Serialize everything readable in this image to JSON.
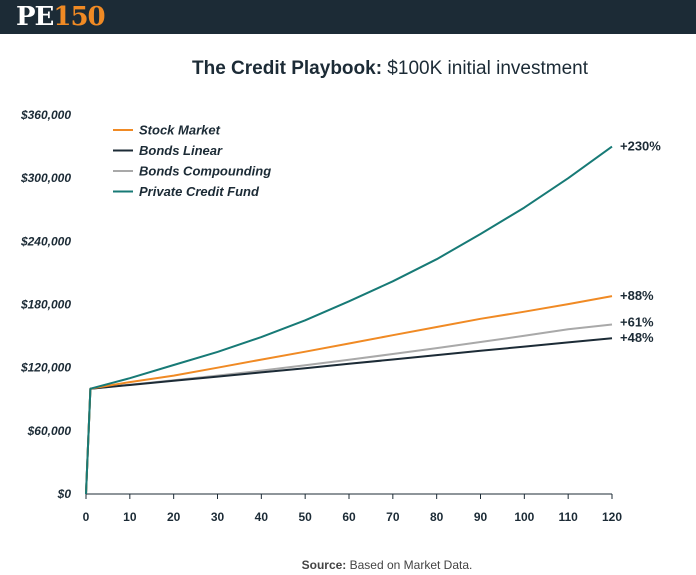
{
  "header": {
    "logo_letters": "PE",
    "logo_number": "150"
  },
  "title": {
    "bold": "The Credit Playbook:",
    "rest": " $100K initial investment"
  },
  "source": {
    "bold": "Source:",
    "rest": " Based on Market Data."
  },
  "chart_data": {
    "type": "line",
    "title": "The Credit Playbook: $100K initial investment",
    "xlabel": "",
    "ylabel": "",
    "xlim": [
      0,
      120
    ],
    "ylim": [
      0,
      360000
    ],
    "x_ticks": [
      0,
      10,
      20,
      30,
      40,
      50,
      60,
      70,
      80,
      90,
      100,
      110,
      120
    ],
    "y_ticks": [
      0,
      60000,
      120000,
      180000,
      240000,
      300000,
      360000
    ],
    "y_tick_labels": [
      "$0",
      "$60,000",
      "$120,000",
      "$180,000",
      "$240,000",
      "$300,000",
      "$360,000"
    ],
    "legend_position": "top-left",
    "grid": false,
    "series": [
      {
        "name": "Stock Market",
        "color": "#f08a24",
        "end_label": "+88%",
        "x": [
          0,
          1,
          10,
          20,
          30,
          40,
          50,
          60,
          70,
          80,
          90,
          100,
          110,
          120
        ],
        "y": [
          0,
          100000,
          106300,
          112500,
          120000,
          127700,
          135200,
          143000,
          150800,
          158600,
          166400,
          173200,
          180400,
          188000
        ]
      },
      {
        "name": "Bonds Linear",
        "color": "#1c2b36",
        "end_label": "+48%",
        "x": [
          0,
          1,
          10,
          20,
          30,
          40,
          50,
          60,
          70,
          80,
          90,
          100,
          110,
          120
        ],
        "y": [
          0,
          100000,
          103500,
          107500,
          111500,
          115500,
          119500,
          123700,
          127800,
          131900,
          136000,
          140000,
          144000,
          148000
        ]
      },
      {
        "name": "Bonds Compounding",
        "color": "#a9a9a9",
        "end_label": "+61%",
        "x": [
          0,
          1,
          10,
          20,
          30,
          40,
          50,
          60,
          70,
          80,
          90,
          100,
          110,
          120
        ],
        "y": [
          0,
          100000,
          103800,
          108000,
          112500,
          117200,
          122300,
          127500,
          133000,
          138600,
          144400,
          150300,
          156400,
          161000
        ]
      },
      {
        "name": "Private Credit Fund",
        "color": "#177a76",
        "end_label": "+230%",
        "x": [
          0,
          1,
          10,
          20,
          30,
          40,
          50,
          60,
          70,
          80,
          90,
          100,
          110,
          120
        ],
        "y": [
          0,
          100000,
          110000,
          122500,
          135000,
          149000,
          165000,
          183000,
          202000,
          223000,
          247000,
          272000,
          300000,
          330000
        ]
      }
    ]
  }
}
